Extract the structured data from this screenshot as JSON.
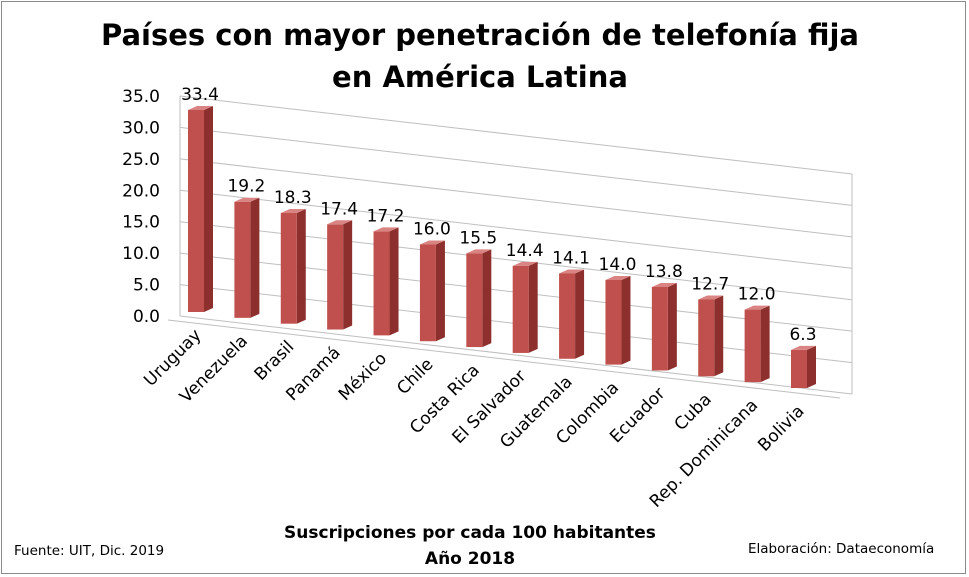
{
  "chart_data": {
    "type": "bar",
    "title": "Países con mayor penetración de telefonía fija en América Latina",
    "xlabel": "Suscripciones por cada 100 habitantes",
    "xlabel_line2": "Año 2018",
    "categories": [
      "Uruguay",
      "Venezuela",
      "Brasil",
      "Panamá",
      "México",
      "Chile",
      "Costa Rica",
      "El Salvador",
      "Guatemala",
      "Colombia",
      "Ecuador",
      "Cuba",
      "Rep. Dominicana",
      "Bolivia"
    ],
    "values": [
      33.4,
      19.2,
      18.3,
      17.4,
      17.2,
      16.0,
      15.5,
      14.4,
      14.1,
      14.0,
      13.8,
      12.7,
      12.0,
      6.3
    ],
    "value_labels": [
      "33.4",
      "19.2",
      "18.3",
      "17.4",
      "17.2",
      "16.0",
      "15.5",
      "14.4",
      "14.1",
      "14.0",
      "13.8",
      "12.7",
      "12.0",
      "6.3"
    ],
    "yticks": [
      "0.0",
      "5.0",
      "10.0",
      "15.0",
      "20.0",
      "25.0",
      "30.0",
      "35.0"
    ],
    "ylim": [
      0,
      35
    ],
    "grid": true,
    "style": "3d-column",
    "colors": {
      "bar_front": "#c0504d",
      "bar_side": "#8c2f2d",
      "bar_top": "#d98482",
      "grid": "#bfbfbf"
    }
  },
  "footer": {
    "source": "Fuente:  UIT,  Dic. 2019",
    "credit": "Elaboración: Dataeconomía"
  }
}
